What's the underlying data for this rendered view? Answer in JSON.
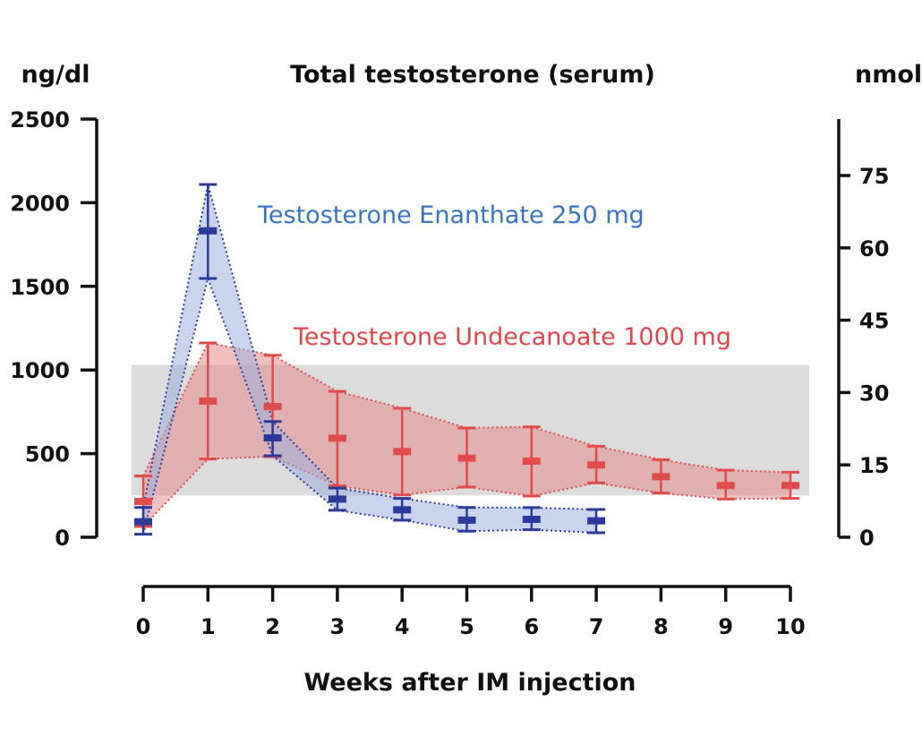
{
  "chart_data": {
    "type": "line",
    "title": "Total testosterone (serum)",
    "xlabel": "Weeks after IM injection",
    "ylabel_left": "ng/dl",
    "ylabel_right": "nmol/l",
    "x_ticks": [
      "0",
      "1",
      "2",
      "3",
      "4",
      "5",
      "6",
      "7",
      "8",
      "9",
      "10"
    ],
    "y_left_ticks": [
      "0",
      "500",
      "1000",
      "1500",
      "2000",
      "2500"
    ],
    "y_right_ticks": [
      "0",
      "15",
      "30",
      "45",
      "60",
      "75"
    ],
    "xlim": [
      0,
      10
    ],
    "ylim_left": [
      0,
      2500
    ],
    "ylim_right": [
      0,
      86.7
    ],
    "grid": false,
    "reference_range": {
      "low": 250,
      "high": 1030,
      "color": "#dcdcdc"
    },
    "series": [
      {
        "name": "Testosterone Enanthate 250 mg",
        "color": "#2b3a9a",
        "fill": "#9fb2de",
        "label_color": "#3a73c0",
        "x": [
          0,
          1,
          2,
          3,
          4,
          5,
          6,
          7
        ],
        "mean": [
          93,
          1832,
          594,
          228,
          164,
          102,
          107,
          98
        ],
        "upper": [
          178,
          2109,
          692,
          294,
          232,
          178,
          177,
          166
        ],
        "lower": [
          18,
          1547,
          487,
          161,
          102,
          36,
          45,
          27
        ]
      },
      {
        "name": "Testosterone Undecanoate 1000 mg",
        "color": "#e04b4b",
        "fill": "#e58c8c",
        "label_color": "#e0474c",
        "x": [
          0,
          1,
          2,
          3,
          4,
          5,
          6,
          7,
          8,
          9,
          10
        ],
        "mean": [
          214,
          814,
          781,
          592,
          512,
          473,
          455,
          432,
          362,
          309,
          309
        ],
        "upper": [
          366,
          1162,
          1088,
          872,
          771,
          653,
          660,
          544,
          464,
          401,
          389
        ],
        "lower": [
          64,
          468,
          482,
          307,
          253,
          300,
          246,
          325,
          264,
          228,
          232
        ]
      }
    ]
  }
}
